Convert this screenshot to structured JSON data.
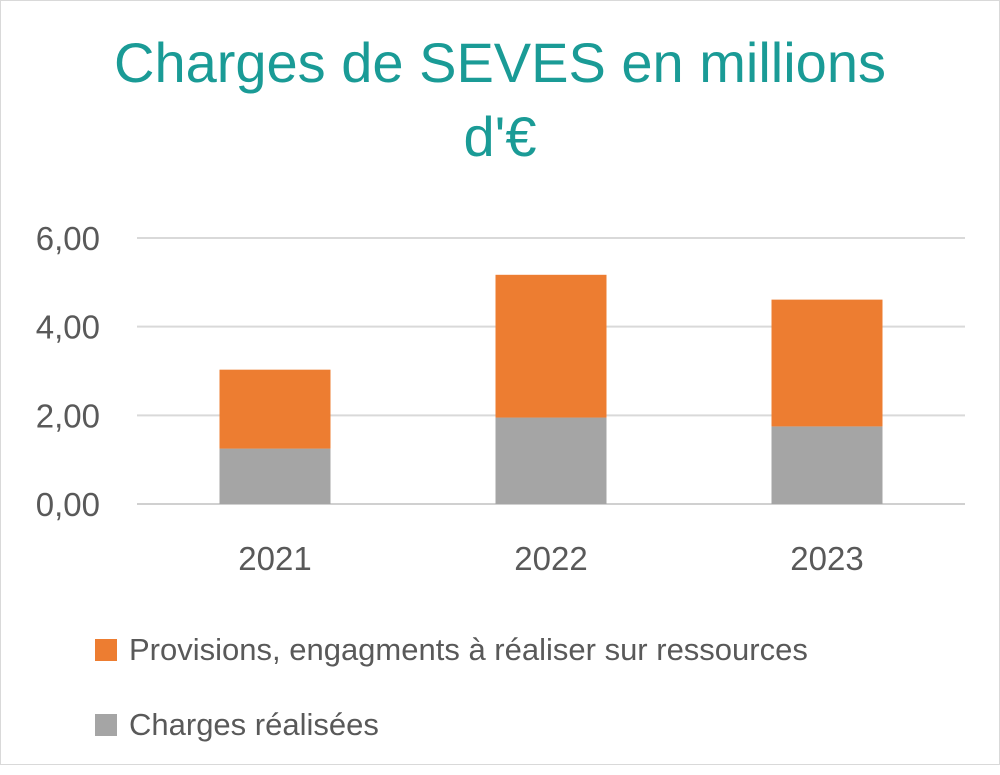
{
  "chart_data": {
    "type": "bar",
    "stacked": true,
    "title": "Charges de SEVES en millions d'€",
    "title_lines": [
      "Charges de SEVES en millions",
      "d'€"
    ],
    "categories": [
      "2021",
      "2022",
      "2023"
    ],
    "series": [
      {
        "name": "Charges réalisées",
        "values": [
          1.25,
          1.95,
          1.75
        ],
        "color": "#a5a5a5"
      },
      {
        "name": "Provisions, engagments à réaliser sur ressources",
        "values": [
          1.78,
          3.22,
          2.86
        ],
        "color": "#ed7d31"
      }
    ],
    "ylim": [
      0,
      6
    ],
    "yticks": [
      0,
      2,
      4,
      6
    ],
    "ytick_labels": [
      "0,00",
      "2,00",
      "4,00",
      "6,00"
    ],
    "grid": true,
    "legend_position": "bottom",
    "legend_order": [
      "Provisions, engagments à réaliser sur ressources",
      "Charges réalisées"
    ],
    "title_color": "#1a9b96"
  }
}
